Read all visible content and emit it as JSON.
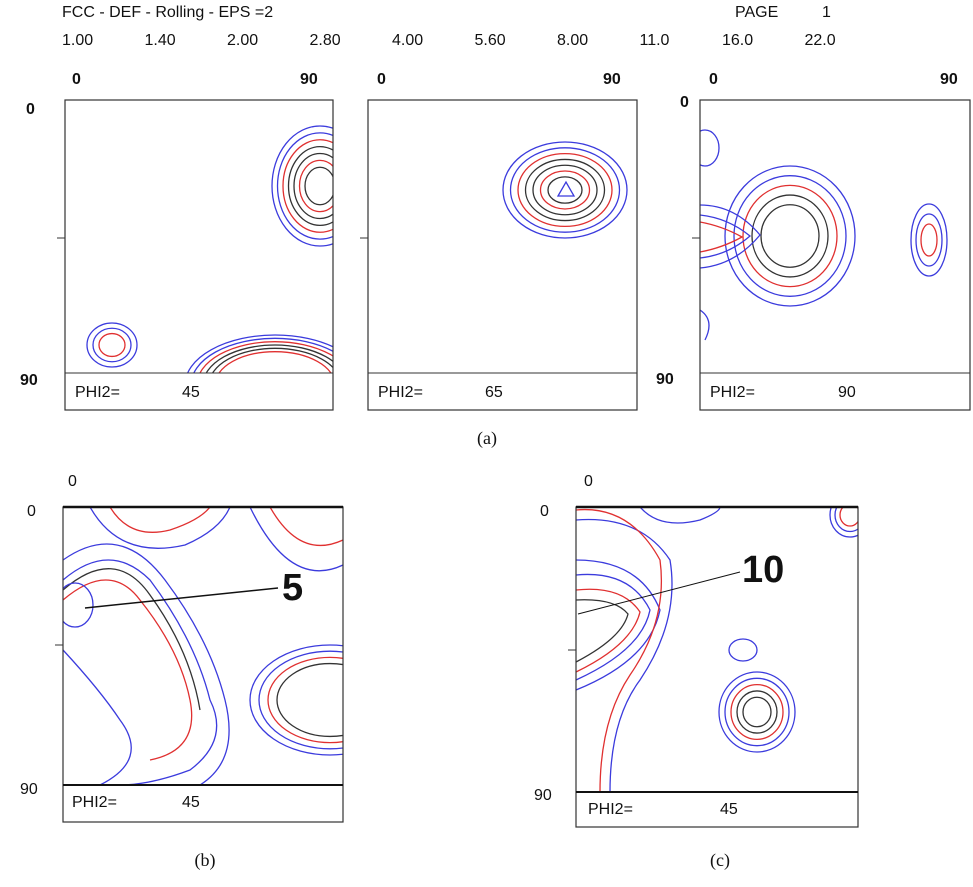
{
  "header": {
    "title": "FCC - DEF - Rolling - EPS =2",
    "page_label": "PAGE",
    "page_number": "1",
    "levels": [
      {
        "text": "1.00",
        "color": "#3333dd"
      },
      {
        "text": "1.40",
        "color": "#3333dd"
      },
      {
        "text": "2.00",
        "color": "#dd2222"
      },
      {
        "text": "2.80",
        "color": "#222222"
      },
      {
        "text": "4.00",
        "color": "#3333dd"
      },
      {
        "text": "5.60",
        "color": "#3333dd"
      },
      {
        "text": "8.00",
        "color": "#dd2222"
      },
      {
        "text": "11.0",
        "color": "#222222"
      },
      {
        "text": "16.0",
        "color": "#3333dd"
      },
      {
        "text": "22.0",
        "color": "#3333dd"
      }
    ]
  },
  "figure_a": {
    "caption": "(a)",
    "sections": [
      {
        "x_start": "0",
        "x_end": "90",
        "y_start": "0",
        "y_end": "90",
        "phi2_label": "PHI2=",
        "phi2": "45"
      },
      {
        "x_start": "0",
        "x_end": "90",
        "phi2_label": "PHI2=",
        "phi2": "65"
      },
      {
        "x_start": "0",
        "x_end": "90",
        "y_start": "0",
        "y_end": "90",
        "phi2_label": "PHI2=",
        "phi2": "90"
      }
    ]
  },
  "figure_b": {
    "caption": "(b)",
    "x_start": "0",
    "y_start": "0",
    "y_end": "90",
    "phi2_label": "PHI2=",
    "phi2": "45",
    "annotation": "5"
  },
  "figure_c": {
    "caption": "(c)",
    "x_start": "0",
    "y_start": "0",
    "y_end": "90",
    "phi2_label": "PHI2=",
    "phi2": "45",
    "annotation": "10"
  }
}
